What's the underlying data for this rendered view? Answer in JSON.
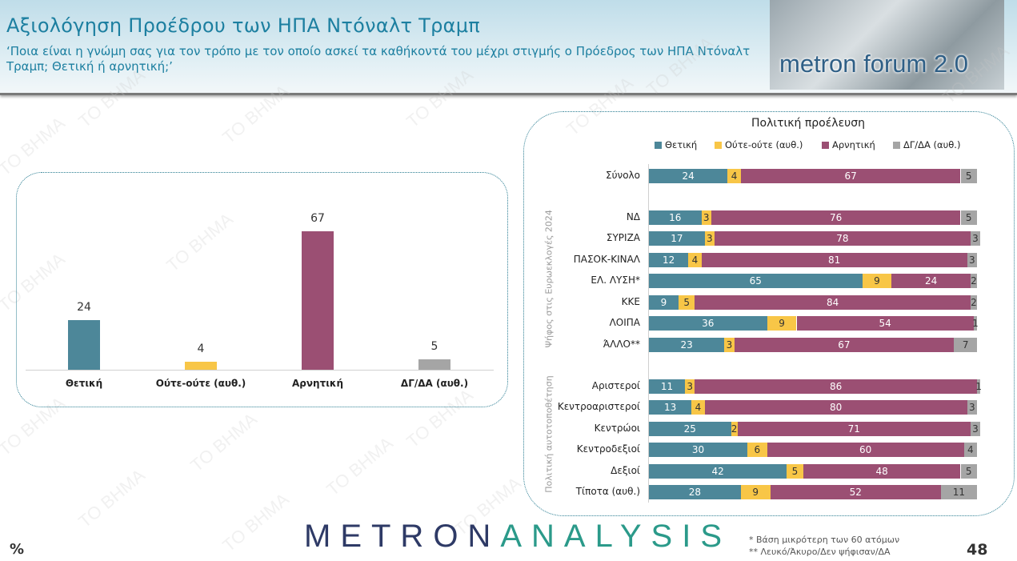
{
  "header": {
    "title": "Αξιολόγηση Προέδρου των ΗΠΑ Ντόναλτ Τραμπ",
    "subtitle": "‘Ποια είναι η γνώμη σας για τον τρόπο με τον οποίο ασκεί τα καθήκοντά του μέχρι στιγμής ο Πρόεδρος των ΗΠΑ Ντόναλτ Τραμπ; Θετική ή αρνητική;’",
    "logo_text": "metron forum 2.0"
  },
  "watermark": "TO BHMA",
  "colors": {
    "positive": "#4d8799",
    "neutral": "#f8c647",
    "negative": "#9b4f73",
    "dk": "#a5a5a5"
  },
  "chart_data": [
    {
      "type": "bar",
      "categories": [
        "Θετική",
        "Ούτε-ούτε (αυθ.)",
        "Αρνητική",
        "ΔΓ/ΔΑ (αυθ.)"
      ],
      "values": [
        24,
        4,
        67,
        5
      ],
      "ylim": [
        0,
        100
      ]
    },
    {
      "type": "bar",
      "orientation": "horizontal",
      "stacked": true,
      "title": "Πολιτική προέλευση",
      "legend": [
        "Θετική",
        "Ούτε-ούτε (αυθ.)",
        "Αρνητική",
        "ΔΓ/ΔΑ (αυθ.)"
      ],
      "legend_position": "top",
      "group_labels": [
        "Ψήφος στις Ευρωεκλογές 2024",
        "Πολιτική αυτοτοποθέτηση"
      ],
      "categories": [
        "Σύνολο",
        "ΝΔ",
        "ΣΥΡΙΖΑ",
        "ΠΑΣΟΚ-ΚΙΝΑΛ",
        "ΕΛ. ΛΥΣΗ*",
        "ΚΚΕ",
        "ΛΟΙΠΑ",
        "ΆΛΛΟ**",
        "Αριστεροί",
        "Κεντροαριστεροί",
        "Κεντρώοι",
        "Κεντροδεξιοί",
        "Δεξιοί",
        "Τίποτα (αυθ.)"
      ],
      "series": [
        {
          "name": "Θετική",
          "values": [
            24,
            16,
            17,
            12,
            65,
            9,
            36,
            23,
            11,
            13,
            25,
            30,
            42,
            28
          ]
        },
        {
          "name": "Ούτε-ούτε (αυθ.)",
          "values": [
            4,
            3,
            3,
            4,
            9,
            5,
            9,
            3,
            3,
            4,
            2,
            6,
            5,
            9
          ]
        },
        {
          "name": "Αρνητική",
          "values": [
            67,
            76,
            78,
            81,
            24,
            84,
            54,
            67,
            86,
            80,
            71,
            60,
            48,
            52
          ]
        },
        {
          "name": "ΔΓ/ΔΑ (αυθ.)",
          "values": [
            5,
            5,
            3,
            3,
            2,
            2,
            1,
            7,
            1,
            3,
            3,
            4,
            5,
            11
          ]
        }
      ]
    }
  ],
  "footer": {
    "percent": "%",
    "brand_a": "METRON",
    "brand_b": "ANALYSIS",
    "note1": "*  Βάση μικρότερη των 60 ατόμων",
    "note2": "** Λευκό/Άκυρο/Δεν ψήφισαν/ΔΑ",
    "page": "48"
  }
}
